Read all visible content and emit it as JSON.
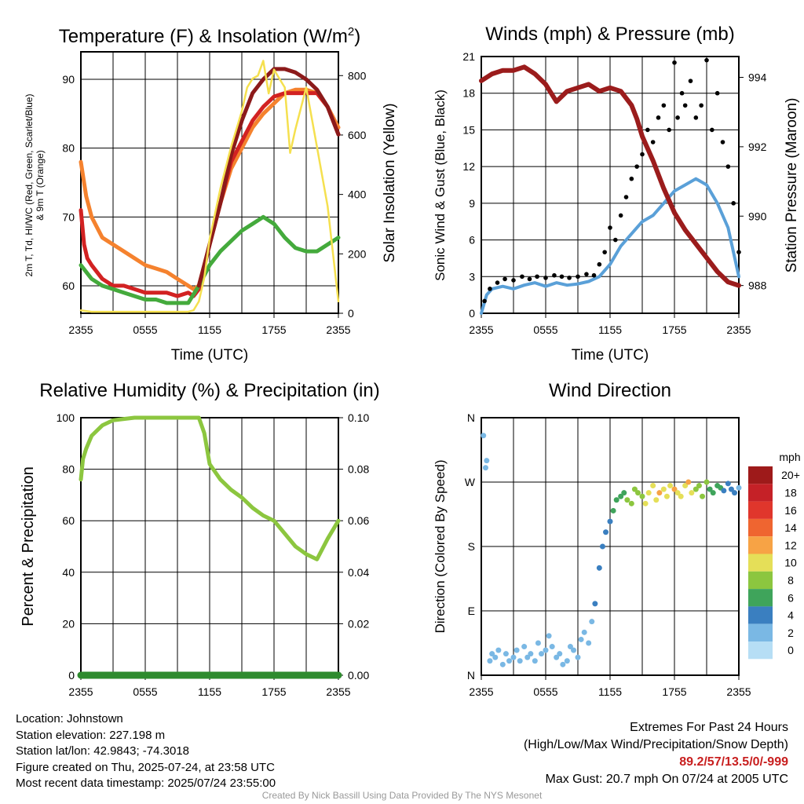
{
  "chart_data": [
    {
      "type": "line",
      "title": "Temperature (F) & Insolation (W/m2)",
      "title_text": "Temperature (F) & Insolation (W/m",
      "title_sup": "2",
      "title_end": ")",
      "xlabel": "Time (UTC)",
      "ylabel_line1": "2m T, Td, HI/WC (Red, Green, Scarlet/Blue)",
      "ylabel_line2": "& 9m T (Orange)",
      "y2label": "Solar Insolation (Yellow)",
      "x_ticks": [
        "2355",
        "0555",
        "1155",
        "1755",
        "2355"
      ],
      "y_ticks": [
        60,
        70,
        80,
        90
      ],
      "y2_ticks": [
        0,
        200,
        400,
        600,
        800
      ],
      "ylim": [
        56,
        94
      ],
      "y2lim": [
        0,
        880
      ],
      "xlim_hours": [
        0,
        24
      ],
      "series": [
        {
          "name": "9m T",
          "color": "#f5822e",
          "x": [
            0,
            0.5,
            1,
            2,
            3,
            4,
            5,
            6,
            7,
            8,
            9,
            10,
            10.5,
            11,
            12,
            13,
            14,
            15,
            16,
            17,
            18,
            19,
            20,
            21,
            22,
            23,
            24
          ],
          "y": [
            78,
            73,
            70,
            67,
            66,
            65,
            64,
            63,
            62.5,
            62,
            61,
            60,
            59.5,
            60,
            66,
            72,
            77,
            80,
            83,
            85,
            86.5,
            88,
            88.5,
            88.5,
            88,
            86,
            83
          ]
        },
        {
          "name": "2m T",
          "color": "#d22222",
          "x": [
            0,
            0.3,
            0.6,
            1,
            2,
            3,
            4,
            5,
            6,
            7,
            8,
            9,
            10,
            10.5,
            11,
            12,
            13,
            14,
            15,
            16,
            17,
            18,
            19,
            20,
            21,
            22,
            23,
            24
          ],
          "y": [
            71,
            66,
            64,
            63,
            61,
            60,
            60,
            59.5,
            59,
            59,
            59,
            58.5,
            59,
            58.5,
            59.5,
            66,
            72,
            78,
            81,
            84,
            86,
            87.5,
            88,
            88,
            88,
            88,
            86,
            82
          ]
        },
        {
          "name": "Td",
          "color": "#44aa3c",
          "x": [
            0,
            1,
            2,
            3,
            4,
            5,
            6,
            7,
            8,
            9,
            10,
            11,
            12,
            13,
            14,
            15,
            16,
            17,
            18,
            19,
            20,
            21,
            22,
            23,
            24
          ],
          "y": [
            63,
            61,
            60,
            59.5,
            59,
            58.5,
            58,
            58,
            57.5,
            57.5,
            57.5,
            60,
            63,
            65,
            66.5,
            68,
            69,
            70,
            69,
            67,
            65.5,
            65,
            65,
            66,
            67
          ]
        },
        {
          "name": "HI/WC",
          "color": "#8c1a1a",
          "x": [
            11,
            12,
            13,
            14,
            15,
            16,
            17,
            18,
            19,
            20,
            21,
            22,
            23,
            24
          ],
          "y": [
            60,
            66,
            72,
            79,
            84,
            88,
            90,
            91.5,
            91.5,
            91,
            90,
            88.5,
            86,
            82
          ]
        },
        {
          "name": "Solar Insolation",
          "color": "#f5e04f",
          "axis": "y2",
          "x": [
            0,
            1,
            2,
            3,
            4,
            5,
            6,
            7,
            8,
            9,
            10,
            10.5,
            11,
            11.5,
            12,
            13,
            14,
            15,
            15.5,
            16,
            16.5,
            17,
            17.5,
            18,
            18.5,
            19,
            19.5,
            20,
            21,
            22,
            23,
            24
          ],
          "y": [
            10,
            5,
            5,
            5,
            5,
            5,
            5,
            5,
            5,
            5,
            5,
            10,
            40,
            120,
            250,
            420,
            560,
            680,
            760,
            790,
            800,
            850,
            740,
            820,
            790,
            760,
            540,
            620,
            760,
            560,
            360,
            40
          ]
        }
      ]
    },
    {
      "type": "line",
      "title": "Winds (mph) & Pressure (mb)",
      "xlabel": "Time (UTC)",
      "ylabel": "Sonic Wind & Gust (Blue, Black)",
      "y2label": "Station Pressure (Maroon)",
      "x_ticks": [
        "2355",
        "0555",
        "1155",
        "1755",
        "2355"
      ],
      "y_ticks": [
        0,
        3,
        6,
        9,
        12,
        15,
        18,
        21
      ],
      "y2_ticks": [
        988,
        990,
        992,
        994
      ],
      "ylim": [
        0,
        21
      ],
      "y2lim": [
        987.2,
        994.6
      ],
      "series": [
        {
          "name": "Station Pressure",
          "color": "#9b1c1c",
          "axis": "y2",
          "x": [
            0,
            1,
            2,
            3,
            4,
            5,
            6,
            7,
            8,
            9,
            10,
            11,
            12,
            13,
            14,
            14.5,
            15,
            16,
            17,
            18,
            19,
            20,
            21,
            22,
            23,
            24
          ],
          "y": [
            993.9,
            994.1,
            994.2,
            994.2,
            994.3,
            994.1,
            993.8,
            993.3,
            993.6,
            993.7,
            993.8,
            993.6,
            993.7,
            993.6,
            993.2,
            992.8,
            992.3,
            991.6,
            990.8,
            990.1,
            989.6,
            989.2,
            988.8,
            988.4,
            988.1,
            988.0
          ]
        },
        {
          "name": "Sonic Wind",
          "color": "#5aa0d8",
          "x": [
            0,
            0.5,
            1,
            2,
            3,
            4,
            5,
            6,
            7,
            8,
            9,
            10,
            11,
            12,
            13,
            14,
            15,
            16,
            17,
            18,
            19,
            20,
            21,
            22,
            23,
            24
          ],
          "y": [
            0,
            1.5,
            2,
            2.2,
            2,
            2.3,
            2.5,
            2.2,
            2.5,
            2.3,
            2.4,
            2.6,
            3,
            4,
            5.5,
            6.5,
            7.5,
            8,
            9,
            10,
            10.5,
            11,
            10.5,
            9,
            7,
            3
          ]
        },
        {
          "name": "Gust",
          "color": "#000000",
          "type": "scatter",
          "x": [
            0.3,
            0.8,
            1.5,
            2.2,
            3,
            3.8,
            4.5,
            5.2,
            6,
            6.8,
            7.5,
            8.2,
            9,
            9.8,
            10.5,
            11,
            11.5,
            12,
            12.5,
            13,
            13.5,
            14,
            14.5,
            15,
            15.5,
            16,
            16.5,
            17,
            17.5,
            18,
            18.3,
            18.7,
            19,
            19.5,
            20,
            20.5,
            21,
            21.5,
            22,
            22.5,
            23,
            23.5,
            24
          ],
          "y": [
            1,
            2,
            2.5,
            2.8,
            2.7,
            3,
            2.8,
            3,
            2.9,
            3.1,
            3,
            2.9,
            3,
            3.2,
            3.1,
            4,
            5,
            7,
            6,
            8,
            9.5,
            11,
            12,
            13,
            15,
            14,
            16,
            17,
            15,
            20.5,
            16,
            18,
            17,
            19,
            16,
            17,
            20.7,
            15,
            18,
            14,
            12,
            9,
            5
          ]
        }
      ]
    },
    {
      "type": "line",
      "title": "Relative Humidity (%) & Precipitation (in)",
      "ylabel": "Percent & Precipitation",
      "x_ticks": [
        "2355",
        "0555",
        "1155",
        "1755",
        "2355"
      ],
      "y_ticks": [
        0,
        20,
        40,
        60,
        80,
        100
      ],
      "y2_ticks": [
        "0.00",
        "0.02",
        "0.04",
        "0.06",
        "0.08",
        "0.10"
      ],
      "ylim": [
        0,
        100
      ],
      "series": [
        {
          "name": "Relative Humidity",
          "color": "#8cc63f",
          "x": [
            0,
            0.2,
            0.5,
            1,
            2,
            3,
            4,
            5,
            6,
            7,
            8,
            9,
            10,
            11,
            11.5,
            12,
            13,
            14,
            15,
            16,
            17,
            18,
            19,
            20,
            21,
            22,
            23,
            24
          ],
          "y": [
            76,
            84,
            88,
            93,
            97,
            99,
            99.5,
            100,
            100,
            100,
            100,
            100,
            100,
            100,
            94,
            82,
            76,
            72,
            69,
            65,
            62,
            60,
            55,
            50,
            47,
            45,
            53,
            60
          ]
        },
        {
          "name": "Precipitation",
          "color": "#2e8b2e",
          "x": [
            0,
            24
          ],
          "y": [
            0,
            0
          ]
        }
      ]
    },
    {
      "type": "scatter",
      "title": "Wind Direction",
      "ylabel": "Direction (Colored By Speed)",
      "x_ticks": [
        "2355",
        "0555",
        "1155",
        "1755",
        "2355"
      ],
      "y_ticks": [
        "N",
        "E",
        "S",
        "W",
        "N"
      ],
      "ylim": [
        0,
        360
      ],
      "colorbar_title": "mph",
      "colorbar_labels": [
        "20+",
        "18",
        "16",
        "14",
        "12",
        "10",
        "8",
        "6",
        "4",
        "2",
        "0"
      ],
      "colorbar_colors": [
        "#9e1a1a",
        "#c52127",
        "#e0362c",
        "#ef6530",
        "#f7a345",
        "#e5df58",
        "#8cc63f",
        "#3fa45b",
        "#3a7fc0",
        "#7ab8e4",
        "#b6def5"
      ],
      "points": {
        "x": [
          0.2,
          0.4,
          0.5,
          0.8,
          1,
          1.3,
          1.6,
          2,
          2.3,
          2.6,
          3,
          3.3,
          3.6,
          4,
          4.3,
          4.6,
          5,
          5.3,
          5.6,
          6,
          6.3,
          6.6,
          7,
          7.3,
          7.6,
          8,
          8.3,
          8.6,
          9,
          9.3,
          9.6,
          10,
          10.3,
          10.6,
          11,
          11.3,
          11.6,
          12,
          12.3,
          12.6,
          13,
          13.3,
          13.6,
          14,
          14.3,
          14.6,
          15,
          15.3,
          15.6,
          16,
          16.3,
          16.6,
          17,
          17.3,
          17.6,
          18,
          18.3,
          18.6,
          19,
          19.3,
          19.6,
          20,
          20.3,
          20.6,
          21,
          21.3,
          21.6,
          22,
          22.3,
          22.6,
          23,
          23.3,
          23.6,
          24
        ],
        "y": [
          335,
          290,
          300,
          20,
          30,
          25,
          35,
          15,
          30,
          20,
          25,
          35,
          20,
          40,
          25,
          30,
          20,
          45,
          30,
          35,
          55,
          40,
          25,
          30,
          15,
          20,
          40,
          35,
          25,
          50,
          60,
          45,
          75,
          100,
          150,
          180,
          200,
          215,
          230,
          245,
          250,
          255,
          245,
          240,
          260,
          255,
          250,
          240,
          255,
          265,
          245,
          255,
          260,
          250,
          265,
          260,
          255,
          250,
          265,
          270,
          255,
          260,
          265,
          250,
          270,
          260,
          255,
          265,
          262,
          258,
          268,
          260,
          255,
          262
        ],
        "speed": [
          1,
          1,
          1,
          1,
          1,
          2,
          1,
          1,
          2,
          1,
          1,
          2,
          1,
          2,
          1,
          1,
          2,
          1,
          2,
          1,
          2,
          1,
          2,
          1,
          2,
          1,
          2,
          1,
          2,
          2,
          2,
          2,
          2,
          3,
          3,
          3,
          4,
          4,
          5,
          5,
          6,
          6,
          7,
          7,
          7,
          8,
          8,
          9,
          9,
          10,
          10,
          11,
          10,
          9,
          10,
          11,
          10,
          9,
          10,
          11,
          9,
          8,
          7,
          8,
          7,
          6,
          5,
          6,
          5,
          4,
          4,
          3,
          3,
          2
        ]
      }
    }
  ],
  "info": {
    "location": "Location: Johnstown",
    "elevation": "Station elevation: 227.198 m",
    "latlon": "Station lat/lon: 42.9843; -74.3018",
    "created": "Figure created on Thu, 2025-07-24, at 23:58 UTC",
    "recent": "Most recent data timestamp: 2025/07/24 23:55:00"
  },
  "extremes": {
    "title": "Extremes For Past 24 Hours",
    "legend": "(High/Low/Max Wind/Precipitation/Snow Depth)",
    "values": "89.2/57/13.5/0/-999",
    "gust": "Max Gust: 20.7 mph On 07/24 at 2005 UTC"
  },
  "credit": "Created By Nick Bassill Using Data Provided By The NYS Mesonet"
}
